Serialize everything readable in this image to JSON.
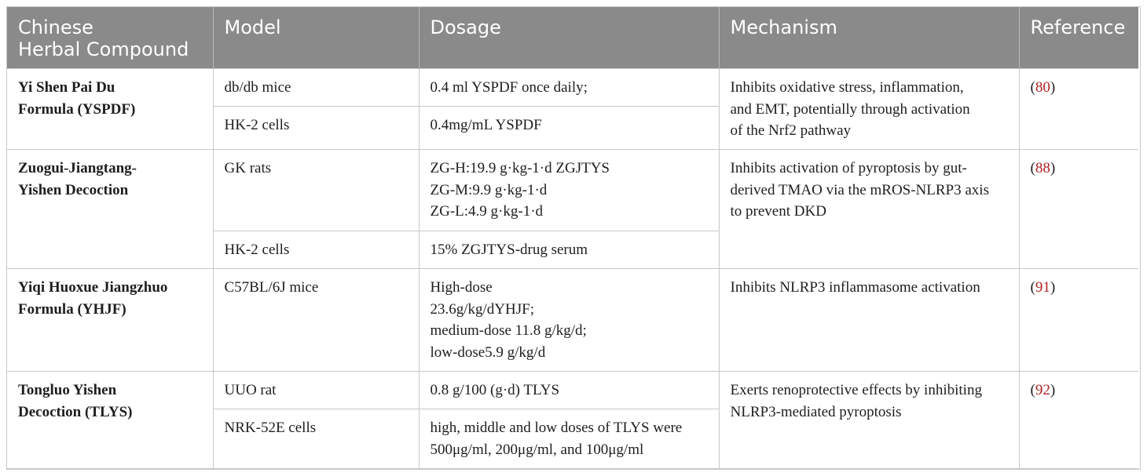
{
  "headers": [
    "Chinese\nHerbal Compound",
    "Model",
    "Dosage",
    "Mechanism",
    "Reference"
  ],
  "header_lines": {
    "compound": [
      "Chinese",
      "Herbal Compound"
    ],
    "model": "Model",
    "dosage": "Dosage",
    "mechanism": "Mechanism",
    "reference": "Reference"
  },
  "rows": [
    {
      "compound": [
        "Yi Shen Pai Du",
        "Formula (YSPDF)"
      ],
      "mechanism": [
        "Inhibits oxidative stress, inflammation,",
        "and EMT, potentially through activation",
        "of the Nrf2 pathway"
      ],
      "reference": "80",
      "models": [
        {
          "model": "db/db mice",
          "dosage": [
            "0.4 ml YSPDF once daily;"
          ]
        },
        {
          "model": "HK-2 cells",
          "dosage": [
            "0.4mg/mL YSPDF"
          ]
        }
      ]
    },
    {
      "compound": [
        "Zuogui-Jiangtang-",
        "Yishen Decoction"
      ],
      "mechanism": [
        "Inhibits activation of pyroptosis by gut-",
        "derived TMAO via the mROS-NLRP3 axis",
        "to prevent DKD"
      ],
      "reference": "88",
      "models": [
        {
          "model": "GK rats",
          "dosage": [
            "ZG-H:19.9 g·kg-1·d ZGJTYS",
            "ZG-M:9.9 g·kg-1·d",
            "ZG-L:4.9 g·kg-1·d"
          ]
        },
        {
          "model": "HK-2 cells",
          "dosage": [
            "15% ZGJTYS-drug serum"
          ]
        }
      ]
    },
    {
      "compound": [
        "Yiqi Huoxue Jiangzhuo",
        "Formula (YHJF)"
      ],
      "mechanism": [
        "Inhibits NLRP3 inflammasome activation"
      ],
      "reference": "91",
      "models": [
        {
          "model": "C57BL/6J mice",
          "dosage": [
            "High-dose",
            "23.6g/kg/dYHJF;",
            "medium-dose 11.8 g/kg/d;",
            "low-dose5.9 g/kg/d"
          ]
        }
      ]
    },
    {
      "compound": [
        "Tongluo Yishen",
        "Decoction (TLYS)"
      ],
      "mechanism": [
        "Exerts renoprotective effects by inhibiting",
        "NLRP3-mediated pyroptosis"
      ],
      "reference": "92",
      "models": [
        {
          "model": "UUO rat",
          "dosage": [
            "0.8 g/100 (g·d) TLYS"
          ]
        },
        {
          "model": "NRK-52E cells",
          "dosage": [
            "high, middle and low doses of TLYS were",
            "500μg/ml, 200μg/ml, and 100μg/ml"
          ]
        }
      ]
    }
  ]
}
